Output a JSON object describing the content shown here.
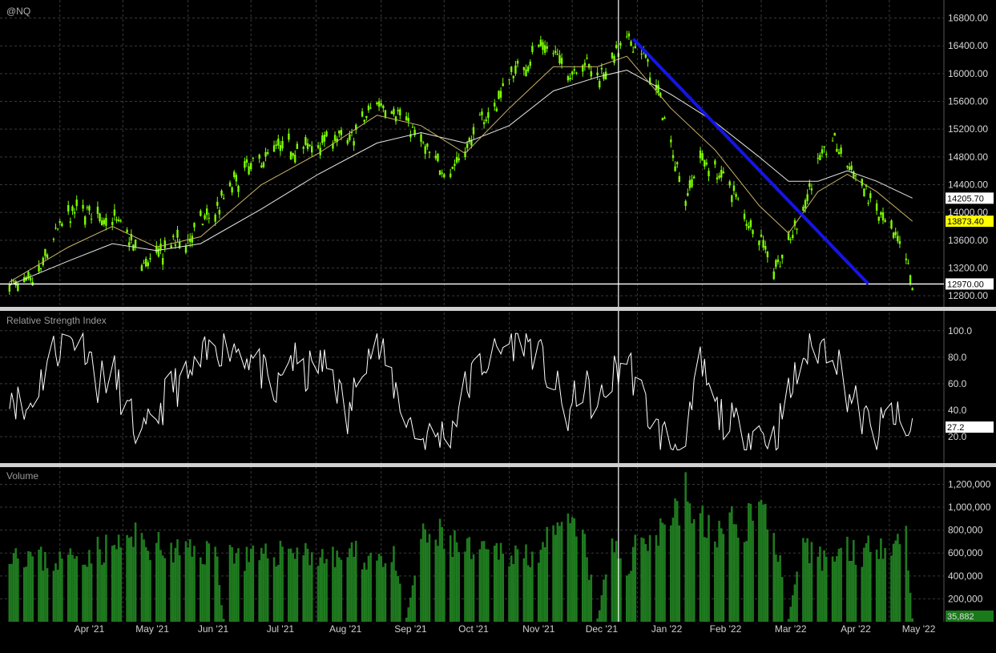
{
  "colors": {
    "background": "#000000",
    "grid": "#3a3a3a",
    "candle_up": "#7CFC00",
    "ma_fast": "#c8b46a",
    "ma_slow": "#e6e6e6",
    "trendline": "#1515e6",
    "volume": "#1f7a1f",
    "label_last": "#ffff00"
  },
  "chart_data": [
    {
      "type": "candlestick",
      "title": "@NQ",
      "ylim": [
        12640,
        17060
      ],
      "yticks": [
        12800,
        13200,
        13600,
        14000,
        14400,
        14800,
        15200,
        15600,
        16000,
        16400,
        16800
      ],
      "ytick_labels": [
        "12800.00",
        "13200.00",
        "13600.00",
        "14000.00",
        "14400.00",
        "14800.00",
        "15200.00",
        "15600.00",
        "16000.00",
        "16400.00",
        "16800.00"
      ],
      "x_labels": [
        "Apr '21",
        "May '21",
        "Jun '21",
        "Jul '21",
        "Aug '21",
        "Sep '21",
        "Oct '21",
        "Nov '21",
        "Dec '21",
        "Jan '22",
        "Feb '22",
        "Mar '22",
        "Apr '22",
        "May '22"
      ],
      "close_path": [
        [
          "2021-03-08",
          12970
        ],
        [
          "2021-03-15",
          12900
        ],
        [
          "2021-03-22",
          13100
        ],
        [
          "2021-03-29",
          13650
        ],
        [
          "2021-04-05",
          13950
        ],
        [
          "2021-04-12",
          14050
        ],
        [
          "2021-04-19",
          13950
        ],
        [
          "2021-04-26",
          13900
        ],
        [
          "2021-05-03",
          13700
        ],
        [
          "2021-05-10",
          13250
        ],
        [
          "2021-05-17",
          13350
        ],
        [
          "2021-05-24",
          13550
        ],
        [
          "2021-06-01",
          13600
        ],
        [
          "2021-06-07",
          13850
        ],
        [
          "2021-06-14",
          14000
        ],
        [
          "2021-06-21",
          14350
        ],
        [
          "2021-06-28",
          14600
        ],
        [
          "2021-07-06",
          14750
        ],
        [
          "2021-07-12",
          14900
        ],
        [
          "2021-07-19",
          14950
        ],
        [
          "2021-07-26",
          14900
        ],
        [
          "2021-08-02",
          15000
        ],
        [
          "2021-08-09",
          15100
        ],
        [
          "2021-08-16",
          15000
        ],
        [
          "2021-08-23",
          15300
        ],
        [
          "2021-08-30",
          15600
        ],
        [
          "2021-09-07",
          15500
        ],
        [
          "2021-09-13",
          15300
        ],
        [
          "2021-09-20",
          15000
        ],
        [
          "2021-09-27",
          14700
        ],
        [
          "2021-10-04",
          14600
        ],
        [
          "2021-10-11",
          14900
        ],
        [
          "2021-10-18",
          15300
        ],
        [
          "2021-10-25",
          15500
        ],
        [
          "2021-11-01",
          16000
        ],
        [
          "2021-11-08",
          16100
        ],
        [
          "2021-11-15",
          16400
        ],
        [
          "2021-11-22",
          16300
        ],
        [
          "2021-11-29",
          16000
        ],
        [
          "2021-12-06",
          16200
        ],
        [
          "2021-12-13",
          15950
        ],
        [
          "2021-12-20",
          16200
        ],
        [
          "2021-12-27",
          16450
        ],
        [
          "2022-01-03",
          16350
        ],
        [
          "2022-01-10",
          15800
        ],
        [
          "2022-01-17",
          15000
        ],
        [
          "2022-01-24",
          14200
        ],
        [
          "2022-01-31",
          14800
        ],
        [
          "2022-02-07",
          14600
        ],
        [
          "2022-02-14",
          14400
        ],
        [
          "2022-02-22",
          13900
        ],
        [
          "2022-02-28",
          13700
        ],
        [
          "2022-03-07",
          13200
        ],
        [
          "2022-03-14",
          13500
        ],
        [
          "2022-03-21",
          14100
        ],
        [
          "2022-03-28",
          14700
        ],
        [
          "2022-04-04",
          15050
        ],
        [
          "2022-04-11",
          14700
        ],
        [
          "2022-04-18",
          14400
        ],
        [
          "2022-04-25",
          14000
        ],
        [
          "2022-05-02",
          13700
        ],
        [
          "2022-05-09",
          13300
        ],
        [
          "2022-05-12",
          12950
        ]
      ],
      "ma_fast_path": [
        [
          "2021-03-08",
          13000
        ],
        [
          "2021-04-05",
          13500
        ],
        [
          "2021-04-26",
          13800
        ],
        [
          "2021-05-17",
          13500
        ],
        [
          "2021-06-07",
          13650
        ],
        [
          "2021-07-06",
          14400
        ],
        [
          "2021-08-02",
          14850
        ],
        [
          "2021-08-30",
          15400
        ],
        [
          "2021-09-20",
          15250
        ],
        [
          "2021-10-11",
          14850
        ],
        [
          "2021-11-01",
          15500
        ],
        [
          "2021-11-22",
          16100
        ],
        [
          "2021-12-13",
          16100
        ],
        [
          "2021-12-27",
          16250
        ],
        [
          "2022-01-17",
          15500
        ],
        [
          "2022-02-07",
          14900
        ],
        [
          "2022-02-28",
          14100
        ],
        [
          "2022-03-14",
          13700
        ],
        [
          "2022-03-28",
          14300
        ],
        [
          "2022-04-11",
          14550
        ],
        [
          "2022-04-25",
          14300
        ],
        [
          "2022-05-12",
          13873.4
        ]
      ],
      "ma_slow_path": [
        [
          "2021-03-08",
          12950
        ],
        [
          "2021-04-05",
          13300
        ],
        [
          "2021-04-26",
          13550
        ],
        [
          "2021-05-17",
          13450
        ],
        [
          "2021-06-07",
          13550
        ],
        [
          "2021-07-06",
          14050
        ],
        [
          "2021-08-02",
          14550
        ],
        [
          "2021-08-30",
          15000
        ],
        [
          "2021-09-20",
          15150
        ],
        [
          "2021-10-11",
          15000
        ],
        [
          "2021-11-01",
          15250
        ],
        [
          "2021-11-22",
          15750
        ],
        [
          "2021-12-13",
          15950
        ],
        [
          "2021-12-27",
          16050
        ],
        [
          "2022-01-17",
          15700
        ],
        [
          "2022-02-07",
          15300
        ],
        [
          "2022-02-28",
          14800
        ],
        [
          "2022-03-14",
          14450
        ],
        [
          "2022-03-28",
          14450
        ],
        [
          "2022-04-11",
          14600
        ],
        [
          "2022-04-25",
          14450
        ],
        [
          "2022-05-12",
          14205.7
        ]
      ],
      "trendline": [
        [
          "2021-12-30",
          16500
        ],
        [
          "2022-04-21",
          12970
        ]
      ],
      "horizontal_line": 12970,
      "crosshair_date": "2021-12-23",
      "last_labels": [
        {
          "value": 14205.7,
          "label": "14205.70",
          "style": "white"
        },
        {
          "value": 13873.4,
          "label": "13873.40",
          "style": "yellow"
        },
        {
          "value": 12970,
          "label": "12970.00",
          "style": "white"
        }
      ]
    },
    {
      "type": "line",
      "title": "Relative Strength Index",
      "ylim": [
        0,
        115
      ],
      "yticks": [
        20,
        40,
        60,
        80,
        100
      ],
      "ytick_labels": [
        "20.0",
        "40.0",
        "60.0",
        "80.0",
        "100.0"
      ],
      "last_value_label": "27.2",
      "series": [
        [
          "2021-03-08",
          58
        ],
        [
          "2021-03-15",
          36
        ],
        [
          "2021-03-22",
          60
        ],
        [
          "2021-03-29",
          85
        ],
        [
          "2021-04-05",
          93
        ],
        [
          "2021-04-12",
          96
        ],
        [
          "2021-04-19",
          62
        ],
        [
          "2021-04-26",
          70
        ],
        [
          "2021-05-03",
          40
        ],
        [
          "2021-05-10",
          16
        ],
        [
          "2021-05-17",
          35
        ],
        [
          "2021-05-24",
          58
        ],
        [
          "2021-06-01",
          62
        ],
        [
          "2021-06-07",
          75
        ],
        [
          "2021-06-14",
          88
        ],
        [
          "2021-06-21",
          90
        ],
        [
          "2021-06-28",
          85
        ],
        [
          "2021-07-06",
          70
        ],
        [
          "2021-07-12",
          45
        ],
        [
          "2021-07-19",
          83
        ],
        [
          "2021-07-26",
          65
        ],
        [
          "2021-08-02",
          75
        ],
        [
          "2021-08-09",
          70
        ],
        [
          "2021-08-16",
          30
        ],
        [
          "2021-08-23",
          82
        ],
        [
          "2021-08-30",
          88
        ],
        [
          "2021-09-07",
          60
        ],
        [
          "2021-09-13",
          35
        ],
        [
          "2021-09-20",
          18
        ],
        [
          "2021-09-27",
          20
        ],
        [
          "2021-10-04",
          25
        ],
        [
          "2021-10-11",
          55
        ],
        [
          "2021-10-18",
          75
        ],
        [
          "2021-10-25",
          80
        ],
        [
          "2021-11-01",
          92
        ],
        [
          "2021-11-08",
          97
        ],
        [
          "2021-11-15",
          80
        ],
        [
          "2021-11-22",
          60
        ],
        [
          "2021-11-29",
          35
        ],
        [
          "2021-12-06",
          60
        ],
        [
          "2021-12-13",
          40
        ],
        [
          "2021-12-20",
          65
        ],
        [
          "2021-12-27",
          80
        ],
        [
          "2022-01-03",
          50
        ],
        [
          "2022-01-10",
          25
        ],
        [
          "2022-01-17",
          15
        ],
        [
          "2022-01-24",
          12
        ],
        [
          "2022-01-31",
          75
        ],
        [
          "2022-02-07",
          40
        ],
        [
          "2022-02-14",
          30
        ],
        [
          "2022-02-22",
          22
        ],
        [
          "2022-02-28",
          25
        ],
        [
          "2022-03-07",
          18
        ],
        [
          "2022-03-14",
          50
        ],
        [
          "2022-03-21",
          80
        ],
        [
          "2022-03-28",
          88
        ],
        [
          "2022-04-04",
          90
        ],
        [
          "2022-04-11",
          55
        ],
        [
          "2022-04-18",
          35
        ],
        [
          "2022-04-25",
          20
        ],
        [
          "2022-05-02",
          40
        ],
        [
          "2022-05-09",
          18
        ],
        [
          "2022-05-12",
          27.2
        ]
      ]
    },
    {
      "type": "bar",
      "title": "Volume",
      "ylim": [
        0,
        1350000
      ],
      "yticks": [
        200000,
        400000,
        600000,
        800000,
        1000000,
        1200000
      ],
      "ytick_labels": [
        "200,000",
        "400,000",
        "600,000",
        "800,000",
        "1,000,000",
        "1,200,000"
      ],
      "last_value_label": "35,882",
      "series": [
        [
          "2021-03-08",
          650000
        ],
        [
          "2021-03-15",
          600000
        ],
        [
          "2021-03-22",
          550000
        ],
        [
          "2021-03-29",
          520000
        ],
        [
          "2021-04-05",
          560000
        ],
        [
          "2021-04-12",
          600000
        ],
        [
          "2021-04-19",
          620000
        ],
        [
          "2021-04-26",
          650000
        ],
        [
          "2021-05-03",
          700000
        ],
        [
          "2021-05-10",
          720000
        ],
        [
          "2021-05-17",
          650000
        ],
        [
          "2021-05-24",
          600000
        ],
        [
          "2021-06-01",
          620000
        ],
        [
          "2021-06-07",
          600000
        ],
        [
          "2021-06-14",
          650000
        ],
        [
          "2021-06-18",
          30000
        ],
        [
          "2021-06-21",
          620000
        ],
        [
          "2021-06-28",
          560000
        ],
        [
          "2021-07-06",
          540000
        ],
        [
          "2021-07-12",
          600000
        ],
        [
          "2021-07-19",
          650000
        ],
        [
          "2021-07-26",
          620000
        ],
        [
          "2021-08-02",
          580000
        ],
        [
          "2021-08-09",
          540000
        ],
        [
          "2021-08-16",
          600000
        ],
        [
          "2021-08-23",
          560000
        ],
        [
          "2021-08-30",
          580000
        ],
        [
          "2021-09-07",
          540000
        ],
        [
          "2021-09-13",
          30000
        ],
        [
          "2021-09-20",
          700000
        ],
        [
          "2021-09-27",
          750000
        ],
        [
          "2021-10-04",
          700000
        ],
        [
          "2021-10-11",
          620000
        ],
        [
          "2021-10-18",
          580000
        ],
        [
          "2021-10-25",
          600000
        ],
        [
          "2021-11-01",
          620000
        ],
        [
          "2021-11-08",
          580000
        ],
        [
          "2021-11-15",
          650000
        ],
        [
          "2021-11-22",
          700000
        ],
        [
          "2021-11-29",
          820000
        ],
        [
          "2021-12-06",
          760000
        ],
        [
          "2021-12-13",
          25000
        ],
        [
          "2021-12-20",
          680000
        ],
        [
          "2021-12-27",
          450000
        ],
        [
          "2022-01-03",
          750000
        ],
        [
          "2022-01-10",
          800000
        ],
        [
          "2022-01-17",
          950000
        ],
        [
          "2022-01-24",
          1100000
        ],
        [
          "2022-01-31",
          850000
        ],
        [
          "2022-02-07",
          780000
        ],
        [
          "2022-02-14",
          820000
        ],
        [
          "2022-02-22",
          900000
        ],
        [
          "2022-02-28",
          1000000
        ],
        [
          "2022-03-07",
          850000
        ],
        [
          "2022-03-14",
          25000
        ],
        [
          "2022-03-21",
          620000
        ],
        [
          "2022-03-28",
          560000
        ],
        [
          "2022-04-04",
          580000
        ],
        [
          "2022-04-11",
          640000
        ],
        [
          "2022-04-18",
          600000
        ],
        [
          "2022-04-25",
          680000
        ],
        [
          "2022-05-02",
          740000
        ],
        [
          "2022-05-09",
          750000
        ],
        [
          "2022-05-12",
          35882
        ]
      ]
    }
  ]
}
